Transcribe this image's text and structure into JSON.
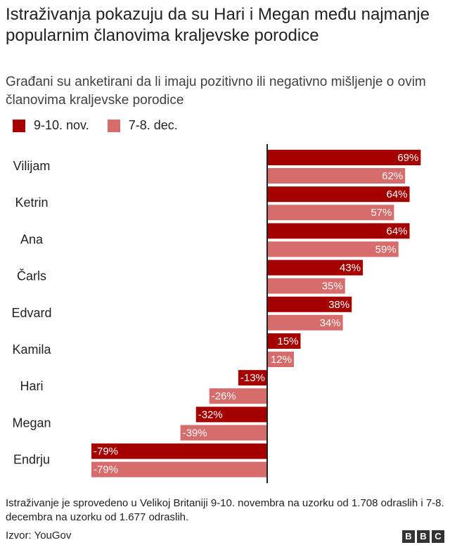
{
  "title": "Istraživanja pokazuju da su Hari i Megan među najmanje popularnim članovima kraljevske porodice",
  "subtitle": "Građani su anketirani da li imaju pozitivno ili negativno mišljenje o ovim članovima kraljevske porodice",
  "legend": [
    {
      "label": "9-10. nov.",
      "color": "#a50000"
    },
    {
      "label": "7-8. dec.",
      "color": "#d66c6c"
    }
  ],
  "chart_data": {
    "type": "bar",
    "orientation": "horizontal",
    "title": "Istraživanja pokazuju da su Hari i Megan među najmanje popularnim članovima kraljevske porodice",
    "categories": [
      "Vilijam",
      "Ketrin",
      "Ana",
      "Čarls",
      "Edvard",
      "Kamila",
      "Hari",
      "Megan",
      "Endrju"
    ],
    "series": [
      {
        "name": "9-10. nov.",
        "color": "#a50000",
        "values": [
          69,
          64,
          64,
          43,
          38,
          15,
          -13,
          -32,
          -79
        ]
      },
      {
        "name": "7-8. dec.",
        "color": "#d66c6c",
        "values": [
          62,
          57,
          59,
          35,
          34,
          12,
          -26,
          -39,
          -79
        ]
      }
    ],
    "data_labels": true,
    "label_suffix": "%",
    "xlim": [
      -79,
      69
    ]
  },
  "footnote": "Istraživanje je sprovedeno u Velikoj Britaniji 9-10. novembra na uzorku od 1.708 odraslih i 7-8. decembra na uzorku od 1.677 odraslih.",
  "source": "Izvor: YouGov",
  "logo": [
    "B",
    "B",
    "C"
  ]
}
